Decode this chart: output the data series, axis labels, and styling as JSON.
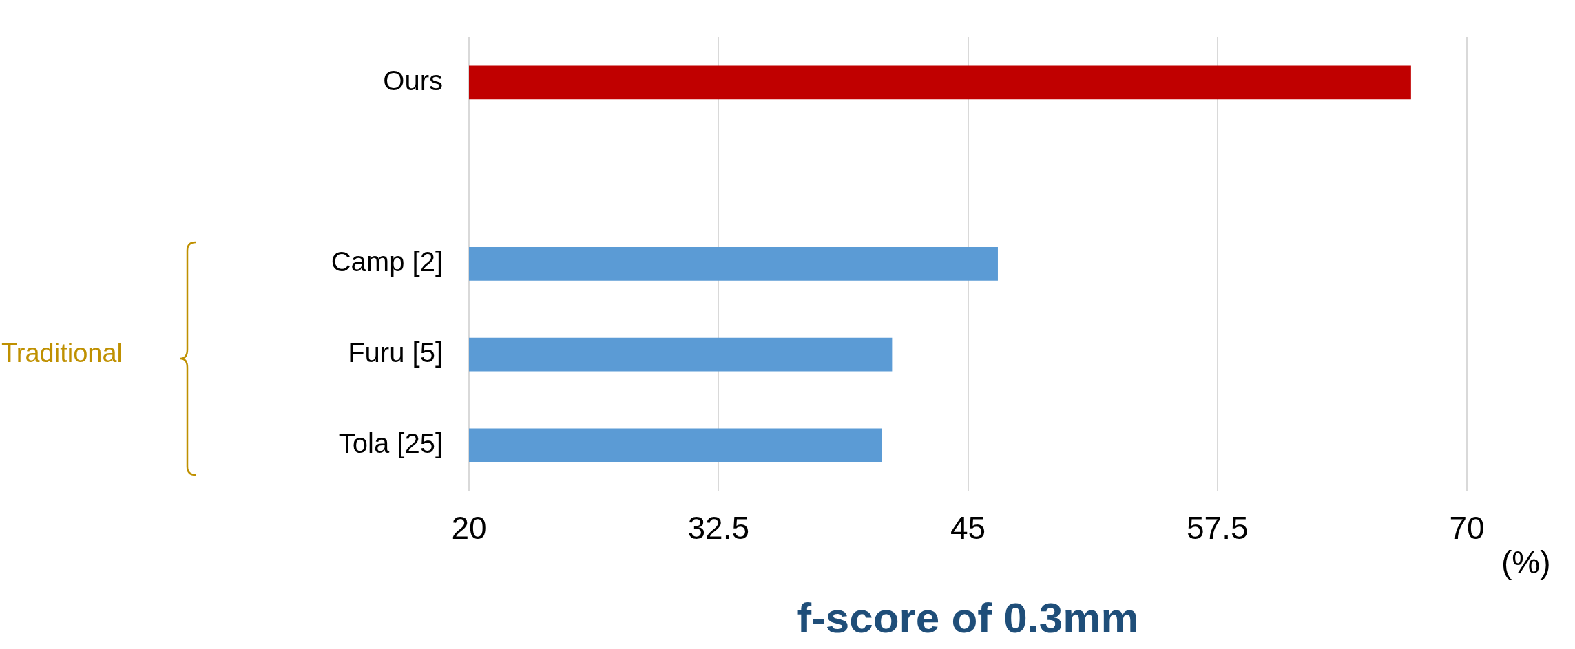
{
  "chart_data": {
    "type": "bar",
    "orientation": "horizontal",
    "categories": [
      "Ours",
      null,
      "Camp [2]",
      "Furu [5]",
      "Tola [25]"
    ],
    "values": [
      67.2,
      null,
      46.5,
      41.2,
      40.7
    ],
    "colors": [
      "#c00000",
      "#5b9bd5",
      "#5b9bd5",
      "#5b9bd5",
      "#5b9bd5"
    ],
    "xlim": [
      20,
      70
    ],
    "xticks": [
      20,
      32.5,
      45,
      57.5,
      70
    ],
    "xlabel": "f-score of 0.3mm",
    "annotations": [
      "Traditional",
      "(%)"
    ],
    "grid": "x",
    "legend": false
  }
}
